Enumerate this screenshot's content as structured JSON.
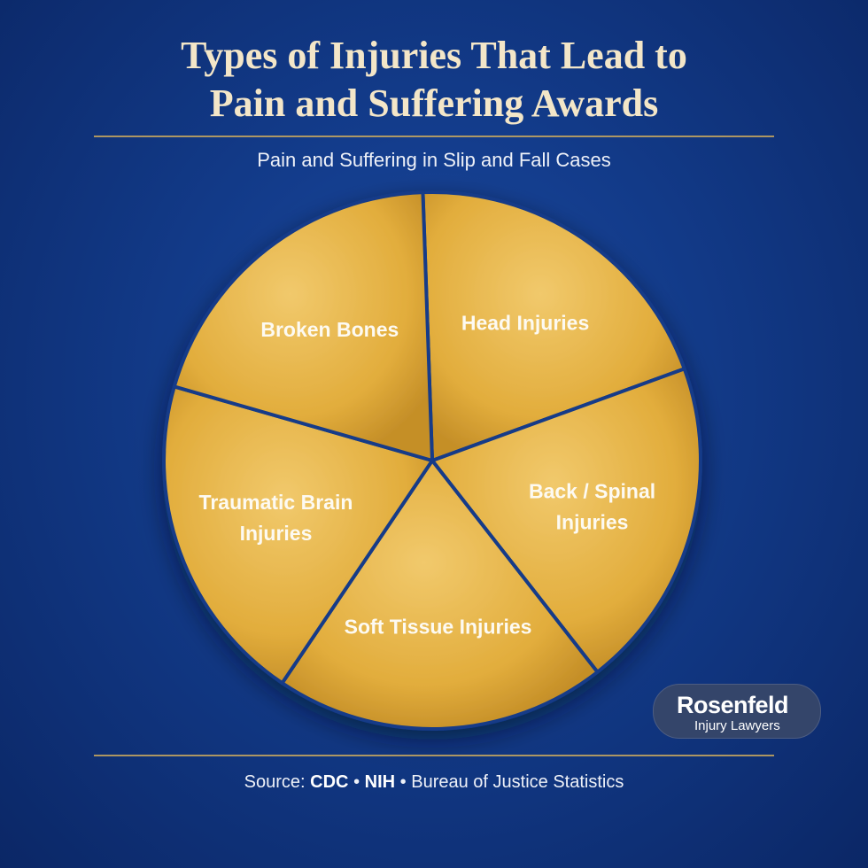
{
  "title_lines": [
    "Types of Injuries That Lead to",
    "Pain and Suffering Awards"
  ],
  "subtitle": "Pain and Suffering in Slip and Fall Cases",
  "chart_data": {
    "type": "pie",
    "title": "",
    "slices": [
      {
        "label": [
          "Head Injuries"
        ],
        "value": 20
      },
      {
        "label": [
          "Back / Spinal",
          "Injuries"
        ],
        "value": 20
      },
      {
        "label": [
          "Soft Tissue Injuries"
        ],
        "value": 20
      },
      {
        "label": [
          "Traumatic Brain",
          "Injuries"
        ],
        "value": 20
      },
      {
        "label": [
          "Broken Bones"
        ],
        "value": 20
      }
    ],
    "colors": {
      "fill": "#e2ad3c",
      "highlight": "#f1c96c",
      "edge": "#c58f28",
      "divider": "#123a88"
    }
  },
  "logo": {
    "name": "Rosenfeld",
    "tagline": "Injury Lawyers"
  },
  "source": {
    "prefix": "Source:",
    "items": [
      "CDC",
      "NIH",
      "Bureau of Justice Statistics"
    ],
    "separator": "•"
  }
}
